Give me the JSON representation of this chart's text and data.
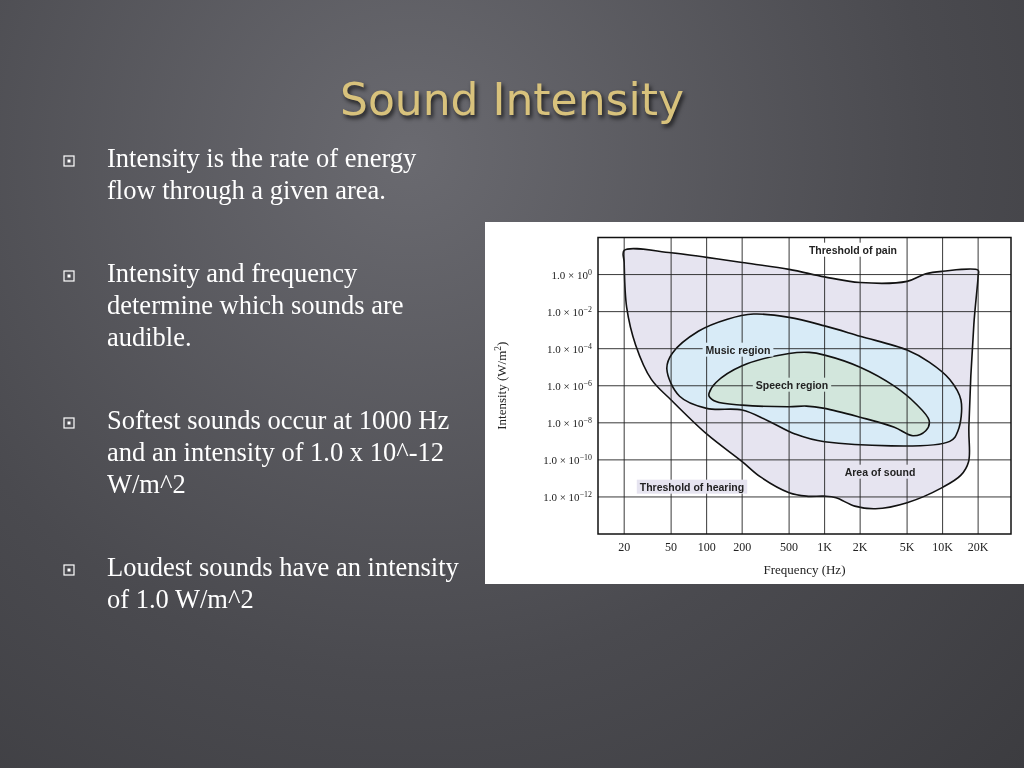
{
  "chart_data": {
    "type": "area",
    "title": "Sound Intensity",
    "xlabel": "Frequency (Hz)",
    "ylabel": "Intensity (W/m$^{2}$)",
    "log": "xy",
    "grid": true,
    "xlim": [
      12,
      38000
    ],
    "ylim": [
      1e-14,
      100
    ],
    "xticks": [
      20,
      50,
      100,
      200,
      500,
      {
        "value": 1000,
        "label": "1K"
      },
      {
        "value": 2000,
        "label": "2K"
      },
      {
        "value": 5000,
        "label": "5K"
      },
      {
        "value": 10000,
        "label": "10K"
      },
      {
        "value": 20000,
        "label": "20K"
      }
    ],
    "yticks": [
      {
        "value": 1,
        "label": "1.0 × 10$^{0}$"
      },
      {
        "value": 0.01,
        "label": "1.0 × 10$^{−2}$"
      },
      {
        "value": 0.0001,
        "label": "1.0 × 10$^{−4}$"
      },
      {
        "value": 1e-06,
        "label": "1.0 × 10$^{−6}$"
      },
      {
        "value": 1e-08,
        "label": "1.0 × 10$^{−8}$"
      },
      {
        "value": 1e-10,
        "label": "1.0 × 10$^{−10}$"
      },
      {
        "value": 1e-12,
        "label": "1.0 × 10$^{−12}$"
      }
    ],
    "series": [
      {
        "name": "Area of sound",
        "color": "#e6e4f0",
        "x": [
          20,
          50,
          100,
          200,
          500,
          1000,
          2000,
          5000,
          7200,
          10000,
          20000,
          20000,
          18400,
          16700,
          16600,
          14300,
          10000,
          5000,
          2700,
          1800,
          1250,
          1000,
          700,
          500,
          286,
          200,
          100,
          50,
          34,
          25,
          21,
          20
        ],
        "values": [
          20,
          15,
          8.5,
          4.5,
          1.9,
          0.75,
          0.37,
          0.43,
          1.1,
          1.5,
          1.7,
          0.8,
          0.002,
          6e-09,
          8e-11,
          1.5e-11,
          3.3e-12,
          4.9e-13,
          2.3e-13,
          3.2e-13,
          9e-13,
          1.1e-12,
          1.1e-12,
          1.7e-12,
          1.2e-11,
          8e-11,
          2.5e-09,
          1.7e-07,
          2.2e-06,
          0.00016,
          0.017,
          4.5
        ]
      },
      {
        "name": "Music region",
        "color": "#d8ebf7",
        "x": [
          46,
          51,
          85,
          150,
          250,
          500,
          1000,
          2000,
          5000,
          7700,
          11500,
          14300,
          13500,
          11500,
          1000,
          560,
          330,
          200,
          100,
          59
        ],
        "values": [
          8e-06,
          5.5e-05,
          0.00087,
          0.0039,
          0.0074,
          0.0049,
          0.0017,
          0.00047,
          8.5e-05,
          1.9e-05,
          2.2e-06,
          1.7e-07,
          3.7e-09,
          1e-09,
          9.5e-10,
          2.5e-09,
          1.3e-08,
          4.9e-08,
          6e-08,
          2.7e-07
        ]
      },
      {
        "name": "Speech region",
        "color": "#d2e6dc",
        "x": [
          105,
          120,
          200,
          500,
          740,
          1000,
          2000,
          3900,
          5900,
          7700,
          7200,
          5600,
          3900,
          2000,
          1000,
          700,
          500,
          200,
          120,
          105
        ],
        "values": [
          4.1e-07,
          1.5e-06,
          1.2e-05,
          5.5e-05,
          6.3e-05,
          4.5e-05,
          1e-05,
          9.5e-07,
          1.1e-07,
          1.3e-08,
          3.7e-09,
          2e-09,
          5.8e-09,
          2e-08,
          6e-08,
          8e-08,
          7.4e-08,
          9e-08,
          1.4e-07,
          2.7e-07
        ]
      }
    ],
    "annotations": [
      "Intensity is the rate of energy flow through a given area.",
      "Intensity and frequency determine which sounds are audible.",
      "Softest sounds occur at 1000 Hz and an intensity of 1.0 x 10^-12 W/m^2",
      "Loudest sounds have an intensity of 1.0 W/m^2",
      "Threshold of pain",
      "Threshold of hearing"
    ]
  }
}
